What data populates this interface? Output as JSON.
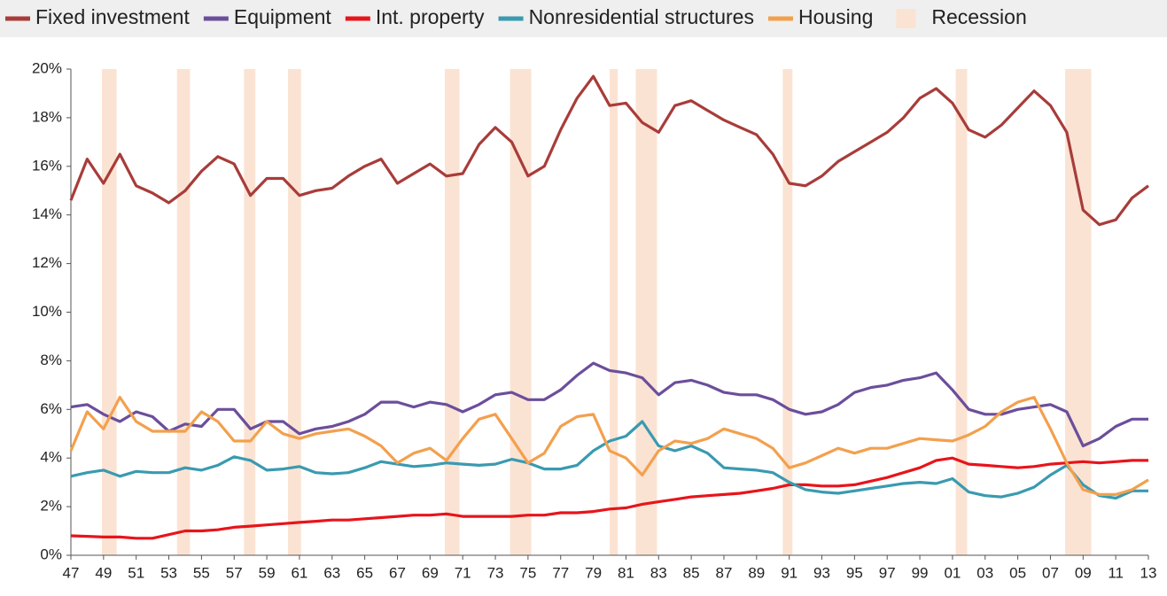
{
  "chart_data": {
    "type": "line",
    "x": [
      1947,
      1948,
      1949,
      1950,
      1951,
      1952,
      1953,
      1954,
      1955,
      1956,
      1957,
      1958,
      1959,
      1960,
      1961,
      1962,
      1963,
      1964,
      1965,
      1966,
      1967,
      1968,
      1969,
      1970,
      1971,
      1972,
      1973,
      1974,
      1975,
      1976,
      1977,
      1978,
      1979,
      1980,
      1981,
      1982,
      1983,
      1984,
      1985,
      1986,
      1987,
      1988,
      1989,
      1990,
      1991,
      1992,
      1993,
      1994,
      1995,
      1996,
      1997,
      1998,
      1999,
      2000,
      2001,
      2002,
      2003,
      2004,
      2005,
      2006,
      2007,
      2008,
      2009,
      2010,
      2011,
      2012,
      2013
    ],
    "series": [
      {
        "name": "Fixed investment",
        "color": "#a83c3a",
        "values": [
          14.6,
          16.3,
          15.3,
          16.5,
          15.2,
          14.9,
          14.5,
          15.0,
          15.8,
          16.4,
          16.1,
          14.8,
          15.5,
          15.5,
          14.8,
          15.0,
          15.1,
          15.6,
          16.0,
          16.3,
          15.3,
          15.7,
          16.1,
          15.6,
          15.7,
          16.9,
          17.6,
          17.0,
          15.6,
          16.0,
          17.5,
          18.8,
          19.7,
          18.5,
          18.6,
          17.8,
          17.4,
          18.5,
          18.7,
          18.3,
          17.9,
          17.6,
          17.3,
          16.5,
          15.3,
          15.2,
          15.6,
          16.2,
          16.6,
          17.0,
          17.4,
          18.0,
          18.8,
          19.2,
          18.6,
          17.5,
          17.2,
          17.7,
          18.4,
          19.1,
          18.5,
          17.4,
          14.2,
          13.6,
          13.8,
          14.7,
          15.2
        ]
      },
      {
        "name": "Equipment",
        "color": "#6b4e9b",
        "values": [
          6.1,
          6.2,
          5.8,
          5.5,
          5.9,
          5.7,
          5.1,
          5.4,
          5.3,
          6.0,
          6.0,
          5.2,
          5.5,
          5.5,
          5.0,
          5.2,
          5.3,
          5.5,
          5.8,
          6.3,
          6.3,
          6.1,
          6.3,
          6.2,
          5.9,
          6.2,
          6.6,
          6.7,
          6.4,
          6.4,
          6.8,
          7.4,
          7.9,
          7.6,
          7.5,
          7.3,
          6.6,
          7.1,
          7.2,
          7.0,
          6.7,
          6.6,
          6.6,
          6.4,
          6.0,
          5.8,
          5.9,
          6.2,
          6.7,
          6.9,
          7.0,
          7.2,
          7.3,
          7.5,
          6.8,
          6.0,
          5.8,
          5.8,
          6.0,
          6.1,
          6.2,
          5.9,
          4.5,
          4.8,
          5.3,
          5.6,
          5.6
        ]
      },
      {
        "name": "Int. property",
        "color": "#e8141b",
        "values": [
          0.8,
          0.78,
          0.75,
          0.75,
          0.7,
          0.7,
          0.85,
          1.0,
          1.0,
          1.05,
          1.15,
          1.2,
          1.25,
          1.3,
          1.35,
          1.4,
          1.45,
          1.45,
          1.5,
          1.55,
          1.6,
          1.65,
          1.65,
          1.7,
          1.6,
          1.6,
          1.6,
          1.6,
          1.65,
          1.65,
          1.75,
          1.75,
          1.8,
          1.9,
          1.95,
          2.1,
          2.2,
          2.3,
          2.4,
          2.45,
          2.5,
          2.55,
          2.65,
          2.75,
          2.9,
          2.9,
          2.85,
          2.85,
          2.9,
          3.05,
          3.2,
          3.4,
          3.6,
          3.9,
          4.0,
          3.75,
          3.7,
          3.65,
          3.6,
          3.65,
          3.75,
          3.8,
          3.85,
          3.8,
          3.85,
          3.9,
          3.9
        ]
      },
      {
        "name": "Nonresidential structures",
        "color": "#3a9ab0",
        "values": [
          3.25,
          3.4,
          3.5,
          3.25,
          3.45,
          3.4,
          3.4,
          3.6,
          3.5,
          3.7,
          4.05,
          3.9,
          3.5,
          3.55,
          3.65,
          3.4,
          3.35,
          3.4,
          3.6,
          3.85,
          3.75,
          3.65,
          3.7,
          3.8,
          3.75,
          3.7,
          3.75,
          3.95,
          3.8,
          3.55,
          3.55,
          3.7,
          4.3,
          4.7,
          4.9,
          5.5,
          4.5,
          4.3,
          4.5,
          4.2,
          3.6,
          3.55,
          3.5,
          3.4,
          3.0,
          2.7,
          2.6,
          2.55,
          2.65,
          2.75,
          2.85,
          2.95,
          3.0,
          2.95,
          3.15,
          2.6,
          2.45,
          2.4,
          2.55,
          2.8,
          3.3,
          3.7,
          2.9,
          2.45,
          2.35,
          2.65,
          2.65
        ]
      },
      {
        "name": "Housing",
        "color": "#f3a04d",
        "values": [
          4.3,
          5.9,
          5.2,
          6.5,
          5.5,
          5.1,
          5.1,
          5.1,
          5.9,
          5.5,
          4.7,
          4.7,
          5.5,
          5.0,
          4.8,
          5.0,
          5.1,
          5.2,
          4.9,
          4.5,
          3.8,
          4.2,
          4.4,
          3.9,
          4.8,
          5.6,
          5.8,
          4.8,
          3.8,
          4.2,
          5.3,
          5.7,
          5.8,
          4.3,
          4.0,
          3.3,
          4.3,
          4.7,
          4.6,
          4.8,
          5.2,
          5.0,
          4.8,
          4.4,
          3.6,
          3.8,
          4.1,
          4.4,
          4.2,
          4.4,
          4.4,
          4.6,
          4.8,
          4.75,
          4.7,
          4.95,
          5.3,
          5.9,
          6.3,
          6.5,
          5.2,
          3.8,
          2.7,
          2.5,
          2.5,
          2.7,
          3.1
        ]
      }
    ],
    "recession_label": "Recession",
    "recession_color": "#fbe3d3",
    "recessions": [
      [
        1948.9,
        1949.8
      ],
      [
        1953.5,
        1954.3
      ],
      [
        1957.6,
        1958.3
      ],
      [
        1960.3,
        1961.1
      ],
      [
        1969.9,
        1970.8
      ],
      [
        1973.9,
        1975.2
      ],
      [
        1980.0,
        1980.5
      ],
      [
        1981.6,
        1982.9
      ],
      [
        1990.6,
        1991.2
      ],
      [
        2001.2,
        2001.9
      ],
      [
        2007.9,
        2009.5
      ]
    ],
    "xlim": [
      1947,
      2013
    ],
    "xticks": [
      {
        "value": 1947,
        "label": "47"
      },
      {
        "value": 1949,
        "label": "49"
      },
      {
        "value": 1951,
        "label": "51"
      },
      {
        "value": 1953,
        "label": "53"
      },
      {
        "value": 1955,
        "label": "55"
      },
      {
        "value": 1957,
        "label": "57"
      },
      {
        "value": 1959,
        "label": "59"
      },
      {
        "value": 1961,
        "label": "61"
      },
      {
        "value": 1963,
        "label": "63"
      },
      {
        "value": 1965,
        "label": "65"
      },
      {
        "value": 1967,
        "label": "67"
      },
      {
        "value": 1969,
        "label": "69"
      },
      {
        "value": 1971,
        "label": "71"
      },
      {
        "value": 1973,
        "label": "73"
      },
      {
        "value": 1975,
        "label": "75"
      },
      {
        "value": 1977,
        "label": "77"
      },
      {
        "value": 1979,
        "label": "79"
      },
      {
        "value": 1981,
        "label": "81"
      },
      {
        "value": 1983,
        "label": "83"
      },
      {
        "value": 1985,
        "label": "85"
      },
      {
        "value": 1987,
        "label": "87"
      },
      {
        "value": 1989,
        "label": "89"
      },
      {
        "value": 1991,
        "label": "91"
      },
      {
        "value": 1993,
        "label": "93"
      },
      {
        "value": 1995,
        "label": "95"
      },
      {
        "value": 1997,
        "label": "97"
      },
      {
        "value": 1999,
        "label": "99"
      },
      {
        "value": 2001,
        "label": "01"
      },
      {
        "value": 2003,
        "label": "03"
      },
      {
        "value": 2005,
        "label": "05"
      },
      {
        "value": 2007,
        "label": "07"
      },
      {
        "value": 2009,
        "label": "09"
      },
      {
        "value": 2011,
        "label": "11"
      },
      {
        "value": 2013,
        "label": "13"
      }
    ],
    "ylim": [
      0,
      20
    ],
    "yticks": [
      {
        "value": 0,
        "label": "0%"
      },
      {
        "value": 2,
        "label": "2%"
      },
      {
        "value": 4,
        "label": "4%"
      },
      {
        "value": 6,
        "label": "6%"
      },
      {
        "value": 8,
        "label": "8%"
      },
      {
        "value": 10,
        "label": "10%"
      },
      {
        "value": 12,
        "label": "12%"
      },
      {
        "value": 14,
        "label": "14%"
      },
      {
        "value": 16,
        "label": "16%"
      },
      {
        "value": 18,
        "label": "18%"
      },
      {
        "value": 20,
        "label": "20%"
      }
    ]
  }
}
